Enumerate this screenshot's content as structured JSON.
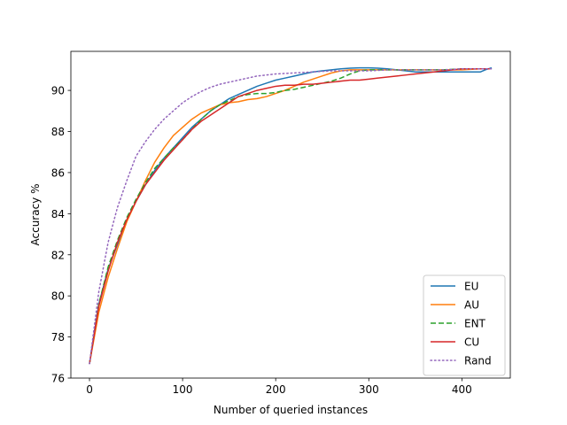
{
  "chart_data": {
    "type": "line",
    "xlabel": "Number of queried instances",
    "ylabel": "Accuracy %",
    "xlim": [
      -20,
      452
    ],
    "ylim": [
      76,
      91.9
    ],
    "xticks": [
      0,
      100,
      200,
      300,
      400
    ],
    "yticks": [
      76,
      78,
      80,
      82,
      84,
      86,
      88,
      90
    ],
    "grid": false,
    "legend_position": "bottom-right",
    "series": [
      {
        "name": "EU",
        "color": "#1f77b4",
        "style": "solid",
        "x": [
          0,
          10,
          20,
          30,
          40,
          50,
          60,
          70,
          80,
          90,
          100,
          110,
          120,
          130,
          140,
          150,
          160,
          170,
          180,
          190,
          200,
          210,
          220,
          230,
          240,
          250,
          260,
          270,
          280,
          290,
          300,
          310,
          320,
          330,
          340,
          350,
          360,
          370,
          380,
          390,
          400,
          410,
          420,
          425,
          432
        ],
        "y": [
          76.7,
          79.6,
          81.3,
          82.5,
          83.7,
          84.6,
          85.4,
          86.1,
          86.7,
          87.2,
          87.7,
          88.2,
          88.6,
          89.0,
          89.3,
          89.6,
          89.8,
          90.0,
          90.2,
          90.35,
          90.5,
          90.6,
          90.7,
          90.8,
          90.9,
          90.95,
          91.0,
          91.05,
          91.08,
          91.1,
          91.1,
          91.08,
          91.05,
          91.0,
          90.95,
          90.9,
          90.9,
          90.9,
          90.9,
          90.9,
          90.9,
          90.9,
          90.9,
          91.0,
          91.1
        ]
      },
      {
        "name": "AU",
        "color": "#ff7f0e",
        "style": "solid",
        "x": [
          0,
          10,
          20,
          30,
          40,
          50,
          60,
          70,
          80,
          90,
          100,
          110,
          120,
          130,
          140,
          150,
          160,
          170,
          180,
          190,
          200,
          210,
          220,
          230,
          240,
          250,
          260,
          270,
          280,
          290,
          300,
          320,
          340,
          360,
          380,
          400,
          420,
          432
        ],
        "y": [
          76.7,
          79.2,
          80.9,
          82.3,
          83.6,
          84.6,
          85.6,
          86.5,
          87.2,
          87.8,
          88.2,
          88.6,
          88.9,
          89.1,
          89.3,
          89.4,
          89.45,
          89.55,
          89.6,
          89.7,
          89.85,
          90.0,
          90.2,
          90.4,
          90.55,
          90.7,
          90.85,
          90.95,
          91.0,
          91.0,
          91.0,
          91.0,
          91.0,
          91.0,
          91.0,
          91.0,
          91.05,
          91.05
        ]
      },
      {
        "name": "ENT",
        "color": "#2ca02c",
        "style": "dashed",
        "x": [
          0,
          10,
          20,
          30,
          40,
          50,
          60,
          70,
          80,
          90,
          100,
          110,
          120,
          130,
          140,
          150,
          160,
          170,
          180,
          190,
          200,
          210,
          220,
          230,
          240,
          250,
          260,
          270,
          280,
          290,
          300,
          320,
          340,
          360,
          380,
          400,
          420,
          432
        ],
        "y": [
          76.7,
          79.6,
          81.4,
          82.7,
          83.8,
          84.7,
          85.5,
          86.2,
          86.7,
          87.2,
          87.6,
          88.1,
          88.6,
          89.0,
          89.3,
          89.5,
          89.7,
          89.8,
          89.85,
          89.85,
          89.9,
          90.0,
          90.05,
          90.15,
          90.25,
          90.35,
          90.45,
          90.6,
          90.8,
          90.95,
          91.0,
          91.0,
          91.0,
          91.0,
          91.0,
          91.05,
          91.05,
          91.05
        ]
      },
      {
        "name": "CU",
        "color": "#d62728",
        "style": "solid",
        "x": [
          0,
          10,
          20,
          30,
          40,
          50,
          60,
          70,
          80,
          90,
          100,
          110,
          120,
          130,
          140,
          150,
          160,
          170,
          180,
          190,
          200,
          210,
          220,
          230,
          240,
          250,
          260,
          270,
          280,
          290,
          300,
          310,
          320,
          330,
          340,
          350,
          360,
          370,
          380,
          390,
          400,
          410,
          420,
          432
        ],
        "y": [
          76.7,
          79.5,
          81.2,
          82.6,
          83.7,
          84.6,
          85.4,
          86.0,
          86.6,
          87.1,
          87.6,
          88.1,
          88.5,
          88.8,
          89.1,
          89.4,
          89.7,
          89.85,
          90.0,
          90.1,
          90.2,
          90.25,
          90.25,
          90.3,
          90.3,
          90.35,
          90.4,
          90.45,
          90.5,
          90.5,
          90.55,
          90.6,
          90.65,
          90.7,
          90.75,
          90.8,
          90.85,
          90.9,
          90.95,
          91.0,
          91.05,
          91.05,
          91.05,
          91.05
        ]
      },
      {
        "name": "Rand",
        "color": "#9467bd",
        "style": "dotted",
        "x": [
          0,
          10,
          20,
          30,
          40,
          50,
          60,
          70,
          80,
          90,
          100,
          110,
          120,
          130,
          140,
          150,
          160,
          170,
          180,
          190,
          200,
          220,
          240,
          260,
          280,
          300,
          320,
          340,
          360,
          380,
          400,
          420,
          432
        ],
        "y": [
          76.7,
          80.2,
          82.6,
          84.3,
          85.6,
          86.8,
          87.5,
          88.1,
          88.6,
          89.0,
          89.4,
          89.7,
          89.95,
          90.15,
          90.3,
          90.4,
          90.5,
          90.6,
          90.7,
          90.75,
          90.8,
          90.85,
          90.9,
          90.95,
          90.95,
          90.95,
          91.0,
          91.0,
          91.0,
          91.0,
          91.05,
          91.05,
          91.05
        ]
      }
    ]
  }
}
